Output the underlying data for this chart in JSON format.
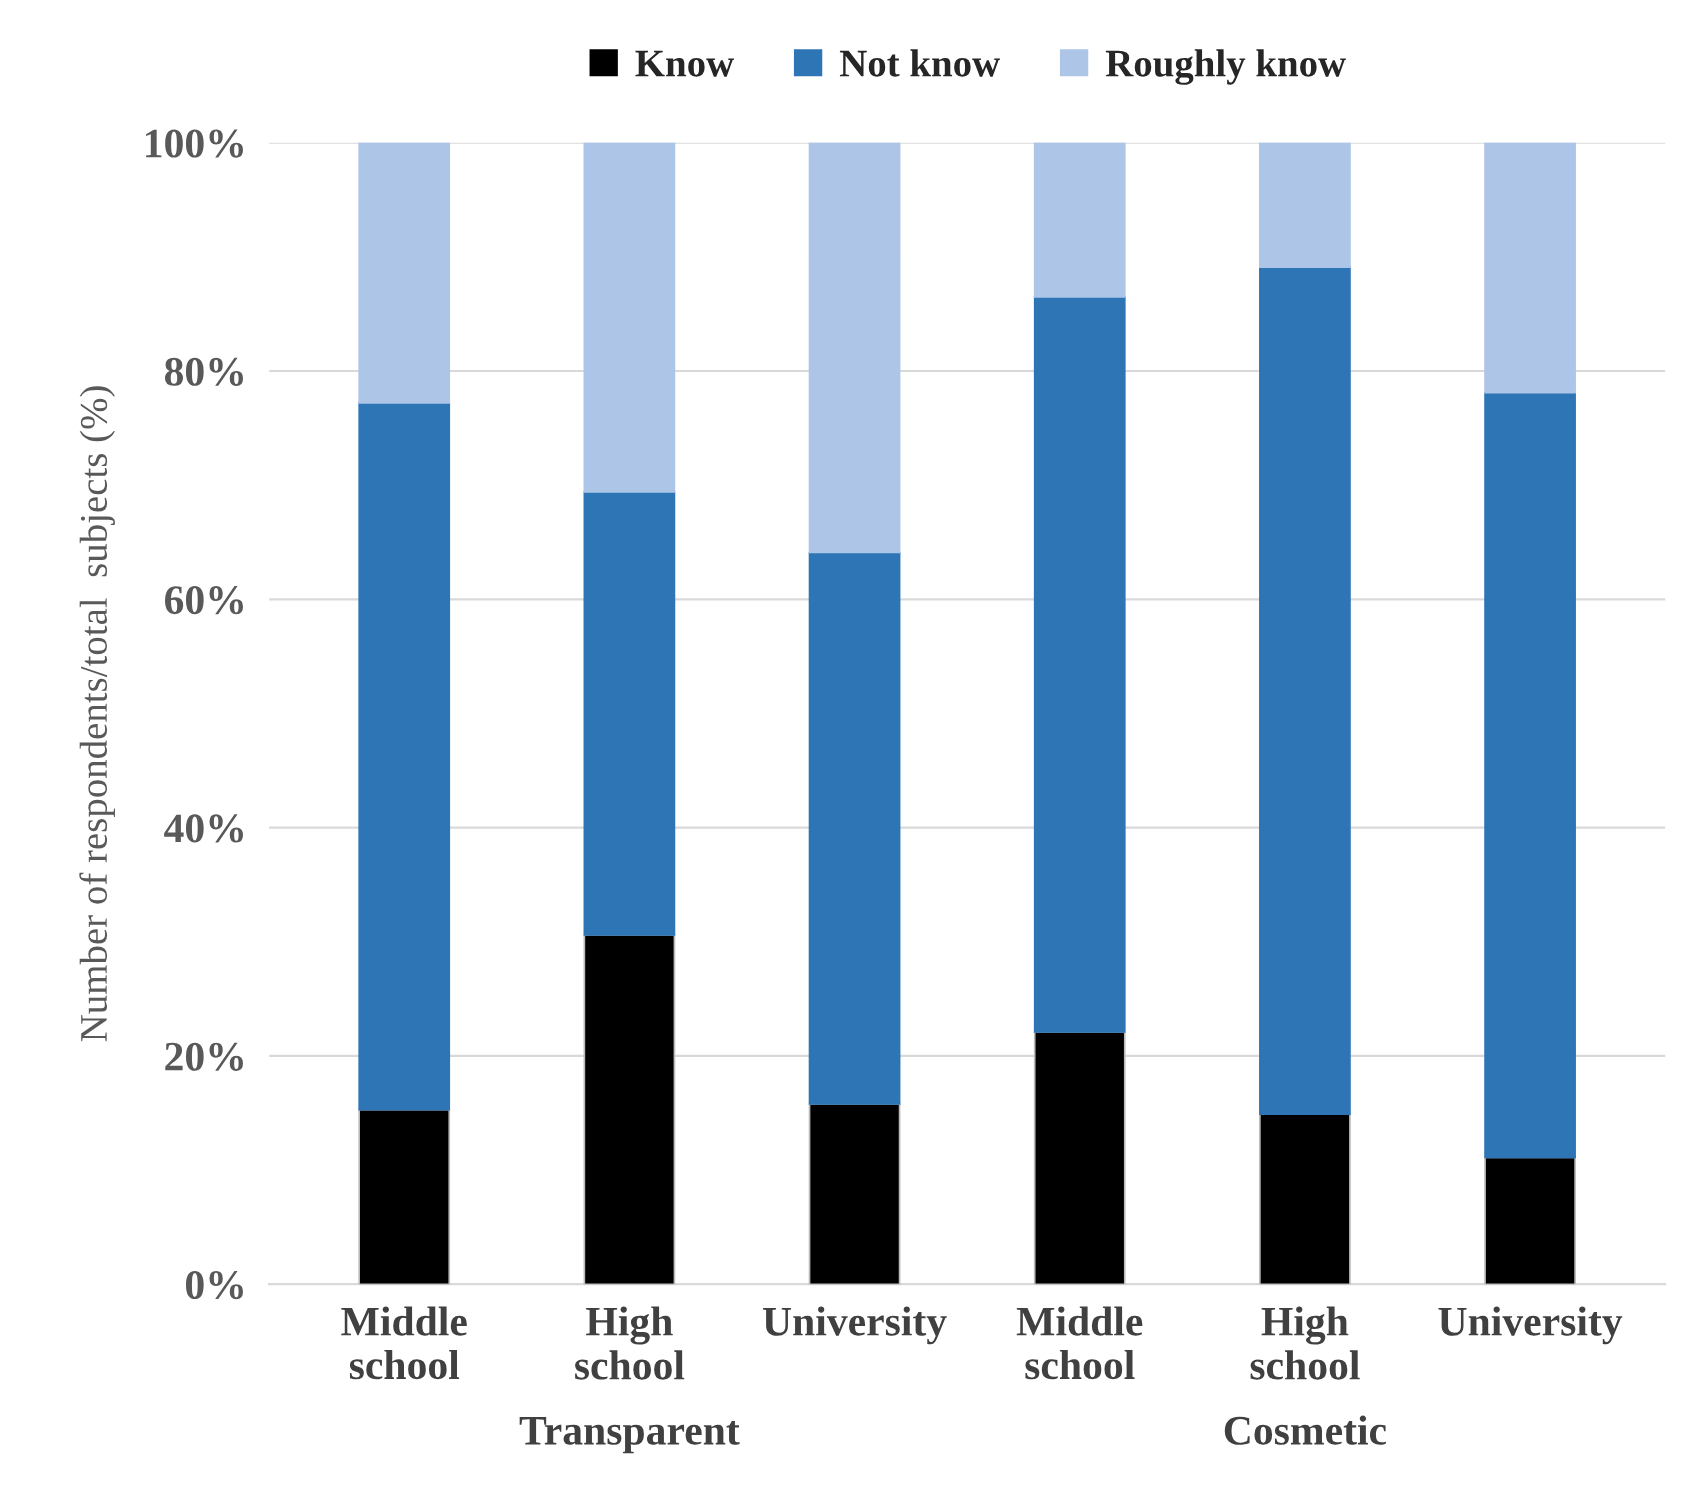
{
  "chart_data": {
    "type": "bar",
    "stacked": true,
    "ylabel": "Number of respondents/total  subjects (%)",
    "categories": [
      "Middle\nschool",
      "High\nschool",
      "University",
      "Middle\nschool",
      "High\nschool",
      "University"
    ],
    "annotations": [
      "Transparent",
      "Cosmetic"
    ],
    "series": [
      {
        "name": "Know",
        "color": "#000000",
        "values": [
          15.3,
          30.6,
          15.8,
          22.1,
          14.9,
          11.1
        ]
      },
      {
        "name": "Not know",
        "color": "#2e75b6",
        "values": [
          61.9,
          38.8,
          48.3,
          64.4,
          74.2,
          67.0
        ]
      },
      {
        "name": "Roughly know",
        "color": "#adc5e6",
        "values": [
          22.8,
          30.6,
          35.9,
          13.5,
          10.9,
          21.9
        ]
      }
    ],
    "ylim": [
      0,
      100
    ],
    "yticks": [
      {
        "value": 0,
        "label": "0%"
      },
      {
        "value": 20,
        "label": "20%"
      },
      {
        "value": 40,
        "label": "40%"
      },
      {
        "value": 60,
        "label": "60%"
      },
      {
        "value": 80,
        "label": "80%"
      },
      {
        "value": 100,
        "label": "100%"
      }
    ],
    "grid": "y",
    "legend": "top"
  }
}
